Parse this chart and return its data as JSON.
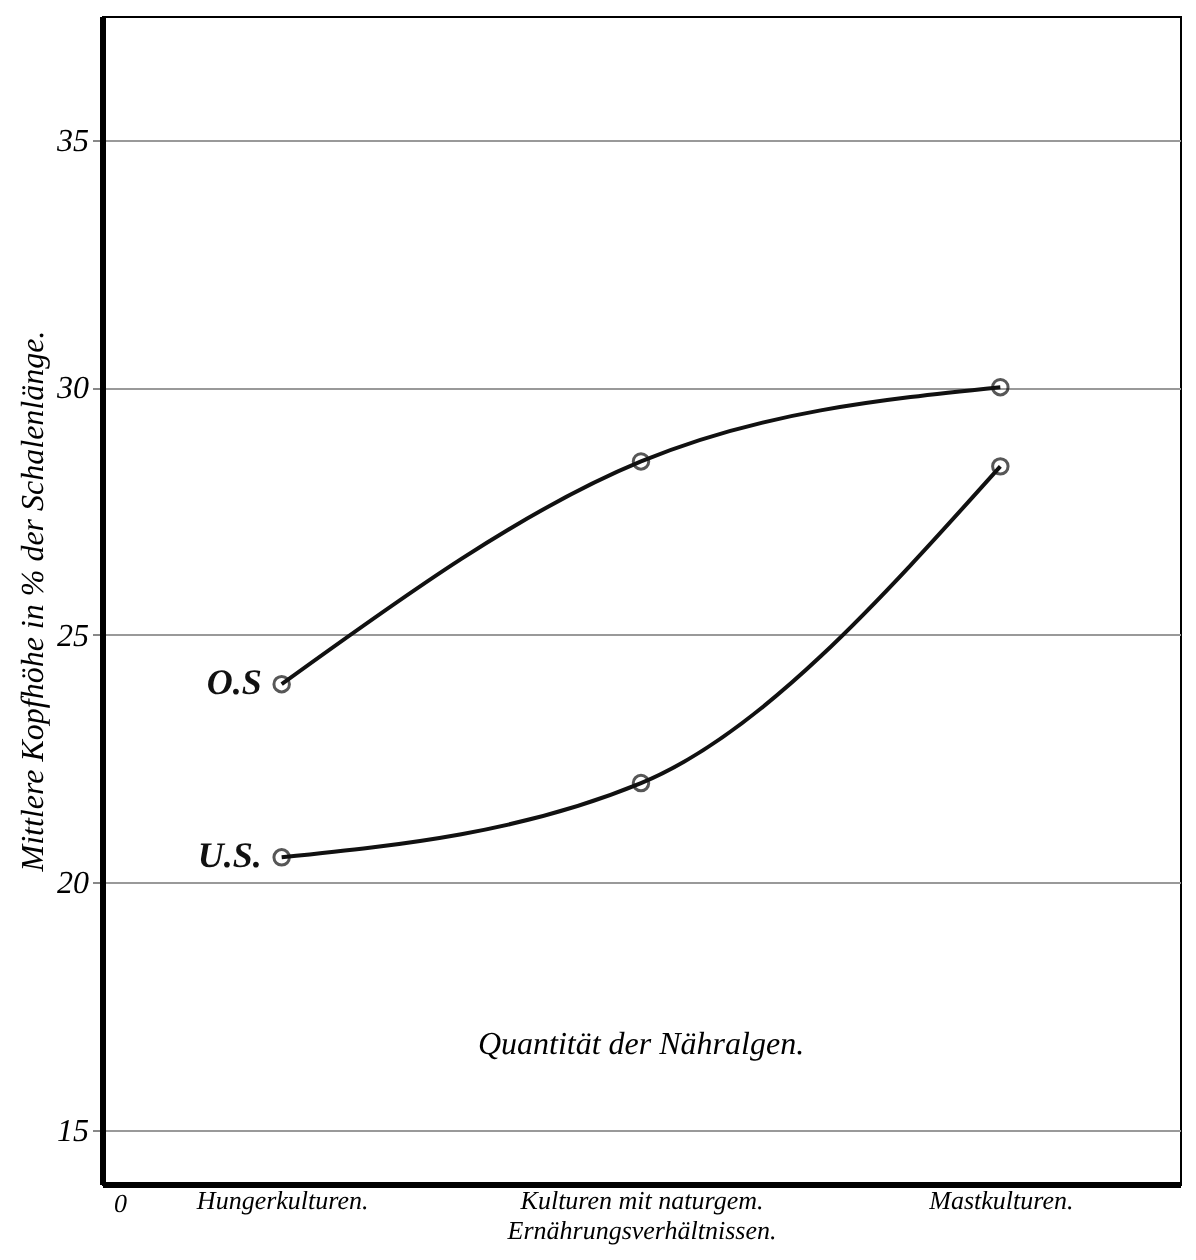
{
  "chart_data": {
    "type": "line",
    "ylabel": "Mittlere Kopfhöhe in % der Schalenlänge.",
    "categories": [
      "Hungerkulturen.",
      "Kulturen mit naturgem.\nErnährungsverhältnissen.",
      "Mastkulturen."
    ],
    "series": [
      {
        "name": "O.S",
        "color": "#111111",
        "values": [
          24.0,
          28.5,
          30.0
        ]
      },
      {
        "name": "U.S.",
        "color": "#111111",
        "values": [
          20.5,
          22.0,
          28.4
        ]
      }
    ],
    "ylim": [
      13.9,
      37.5
    ],
    "yticks": [
      15,
      20,
      25,
      30,
      35
    ],
    "grid": "y",
    "marker": "circle",
    "line_style": "solid",
    "annotations": [
      "Quantität der Nähralgen.",
      "0"
    ]
  }
}
